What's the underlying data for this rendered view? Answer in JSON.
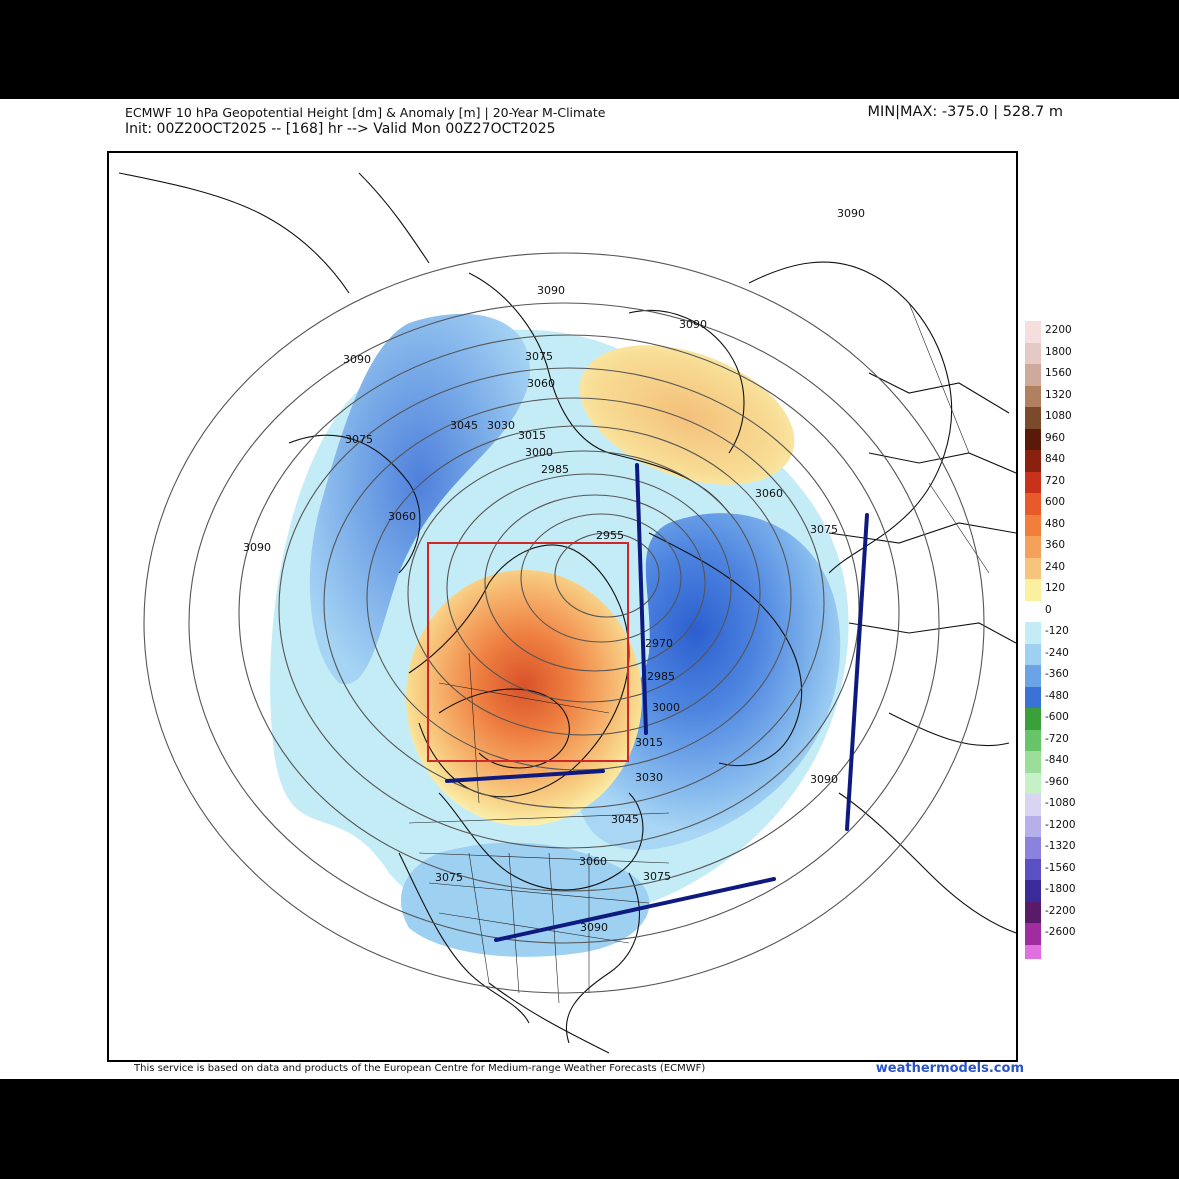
{
  "header": {
    "title_line1": "ECMWF 10 hPa Geopotential Height [dm] & Anomaly [m] | 20-Year M-Climate",
    "title_line2": "Init: 00Z20OCT2025 -- [168] hr --> Valid Mon 00Z27OCT2025",
    "minmax": "MIN|MAX: -375.0 | 528.7 m"
  },
  "contour_labels": [
    "3090",
    "3090",
    "3090",
    "3090",
    "3090",
    "3090",
    "3090",
    "3075",
    "3075",
    "3075",
    "3075",
    "3075",
    "3060",
    "3060",
    "3060",
    "3060",
    "3045",
    "3045",
    "3030",
    "3030",
    "3015",
    "3015",
    "3000",
    "3000",
    "2985",
    "2985",
    "2970",
    "2955"
  ],
  "legend": {
    "ticks": [
      "2200",
      "1800",
      "1560",
      "1320",
      "1080",
      "960",
      "840",
      "720",
      "600",
      "480",
      "360",
      "240",
      "120",
      "0",
      "-120",
      "-240",
      "-360",
      "-480",
      "-600",
      "-720",
      "-840",
      "-960",
      "-1080",
      "-1200",
      "-1320",
      "-1560",
      "-1800",
      "-2200",
      "-2600"
    ],
    "colors": [
      "#f6dede",
      "#e4c9c4",
      "#cfa999",
      "#b08060",
      "#7a4a2a",
      "#5a1a0a",
      "#8a200e",
      "#c8321a",
      "#e85a2a",
      "#f27e3c",
      "#f4a25a",
      "#f7c47e",
      "#faf0a0",
      "#ffffff",
      "#c4ecf7",
      "#9ed0f2",
      "#6aa4e6",
      "#3a72d6",
      "#3aa13a",
      "#68c468",
      "#9ade9a",
      "#c6f0c6",
      "#d8d4f2",
      "#b6b0ea",
      "#8a82dc",
      "#5a50c4",
      "#3a2a9a",
      "#5a1a6a",
      "#a02ca0"
    ],
    "extra_color": "#e070e0"
  },
  "annotations": {
    "box_color": "#d02828",
    "line_color": "#0f1a80"
  },
  "footer": {
    "credit": "This service is based on data and products of the European Centre for Medium-range Weather Forecasts (ECMWF)",
    "brand": "weathermodels.com"
  }
}
